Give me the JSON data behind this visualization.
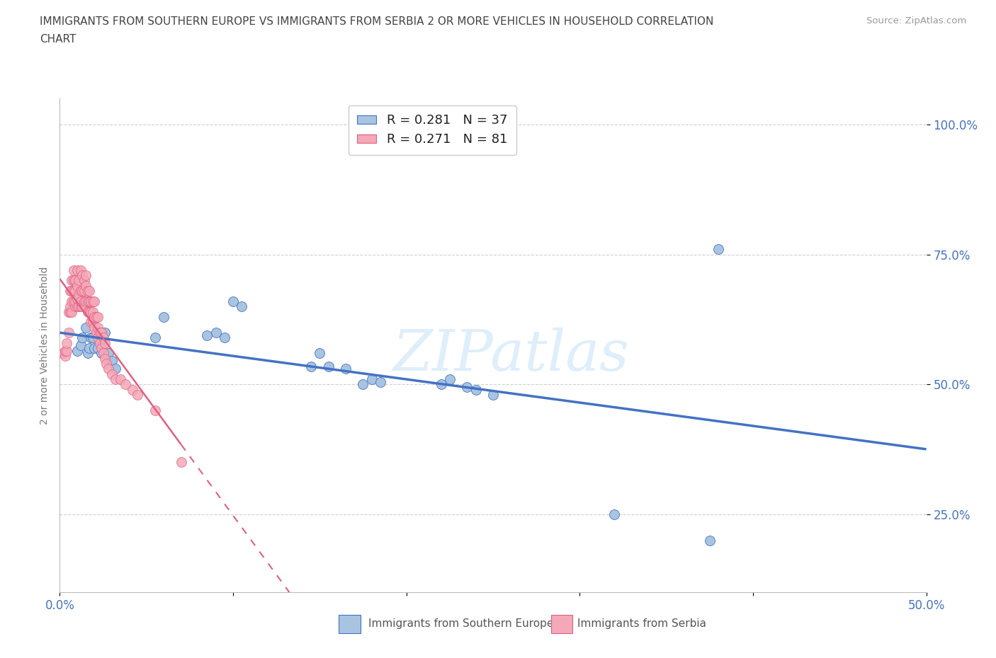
{
  "title_line1": "IMMIGRANTS FROM SOUTHERN EUROPE VS IMMIGRANTS FROM SERBIA 2 OR MORE VEHICLES IN HOUSEHOLD CORRELATION",
  "title_line2": "CHART",
  "source": "Source: ZipAtlas.com",
  "ylabel": "2 or more Vehicles in Household",
  "xlim": [
    0.0,
    0.5
  ],
  "ylim": [
    0.1,
    1.05
  ],
  "xtick_positions": [
    0.0,
    0.1,
    0.2,
    0.3,
    0.4,
    0.5
  ],
  "xtick_labels": [
    "0.0%",
    "",
    "",
    "",
    "",
    "50.0%"
  ],
  "ytick_positions": [
    0.25,
    0.5,
    0.75,
    1.0
  ],
  "ytick_labels": [
    "25.0%",
    "50.0%",
    "75.0%",
    "100.0%"
  ],
  "color_blue": "#a8c4e0",
  "color_pink": "#f4a8b8",
  "line_blue": "#4472c4",
  "line_pink": "#e06080",
  "R_blue": 0.281,
  "N_blue": 37,
  "R_pink": 0.271,
  "N_pink": 81,
  "blue_x": [
    0.01,
    0.012,
    0.013,
    0.015,
    0.016,
    0.017,
    0.018,
    0.019,
    0.02,
    0.022,
    0.024,
    0.026,
    0.028,
    0.03,
    0.032,
    0.055,
    0.06,
    0.085,
    0.09,
    0.095,
    0.1,
    0.105,
    0.145,
    0.15,
    0.155,
    0.165,
    0.175,
    0.18,
    0.185,
    0.22,
    0.225,
    0.235,
    0.24,
    0.25,
    0.32,
    0.375,
    0.38
  ],
  "blue_y": [
    0.565,
    0.575,
    0.59,
    0.61,
    0.56,
    0.57,
    0.59,
    0.59,
    0.57,
    0.57,
    0.56,
    0.6,
    0.56,
    0.545,
    0.53,
    0.59,
    0.63,
    0.595,
    0.6,
    0.59,
    0.66,
    0.65,
    0.535,
    0.56,
    0.535,
    0.53,
    0.5,
    0.51,
    0.505,
    0.5,
    0.51,
    0.495,
    0.49,
    0.48,
    0.25,
    0.2,
    0.76
  ],
  "pink_x": [
    0.002,
    0.003,
    0.003,
    0.004,
    0.004,
    0.005,
    0.005,
    0.006,
    0.006,
    0.006,
    0.007,
    0.007,
    0.007,
    0.007,
    0.008,
    0.008,
    0.008,
    0.008,
    0.009,
    0.009,
    0.009,
    0.009,
    0.01,
    0.01,
    0.01,
    0.01,
    0.011,
    0.011,
    0.011,
    0.012,
    0.012,
    0.012,
    0.012,
    0.013,
    0.013,
    0.013,
    0.014,
    0.014,
    0.014,
    0.015,
    0.015,
    0.015,
    0.015,
    0.016,
    0.016,
    0.016,
    0.017,
    0.017,
    0.017,
    0.018,
    0.018,
    0.018,
    0.019,
    0.019,
    0.019,
    0.02,
    0.02,
    0.02,
    0.021,
    0.021,
    0.022,
    0.022,
    0.022,
    0.023,
    0.023,
    0.024,
    0.024,
    0.025,
    0.025,
    0.026,
    0.026,
    0.027,
    0.028,
    0.03,
    0.032,
    0.035,
    0.038,
    0.042,
    0.045,
    0.055,
    0.07
  ],
  "pink_y": [
    0.56,
    0.555,
    0.565,
    0.565,
    0.58,
    0.6,
    0.64,
    0.64,
    0.65,
    0.68,
    0.64,
    0.66,
    0.68,
    0.7,
    0.66,
    0.68,
    0.7,
    0.72,
    0.65,
    0.66,
    0.68,
    0.7,
    0.65,
    0.665,
    0.69,
    0.72,
    0.65,
    0.67,
    0.7,
    0.65,
    0.66,
    0.68,
    0.72,
    0.65,
    0.68,
    0.71,
    0.66,
    0.68,
    0.7,
    0.65,
    0.66,
    0.69,
    0.71,
    0.64,
    0.66,
    0.68,
    0.64,
    0.66,
    0.68,
    0.62,
    0.64,
    0.66,
    0.62,
    0.64,
    0.66,
    0.61,
    0.63,
    0.66,
    0.6,
    0.63,
    0.59,
    0.61,
    0.63,
    0.58,
    0.6,
    0.57,
    0.6,
    0.56,
    0.59,
    0.55,
    0.58,
    0.54,
    0.53,
    0.52,
    0.51,
    0.51,
    0.5,
    0.49,
    0.48,
    0.45,
    0.35
  ],
  "watermark": "ZIPatlas",
  "background_color": "#ffffff",
  "grid_color": "#d0d0d0"
}
